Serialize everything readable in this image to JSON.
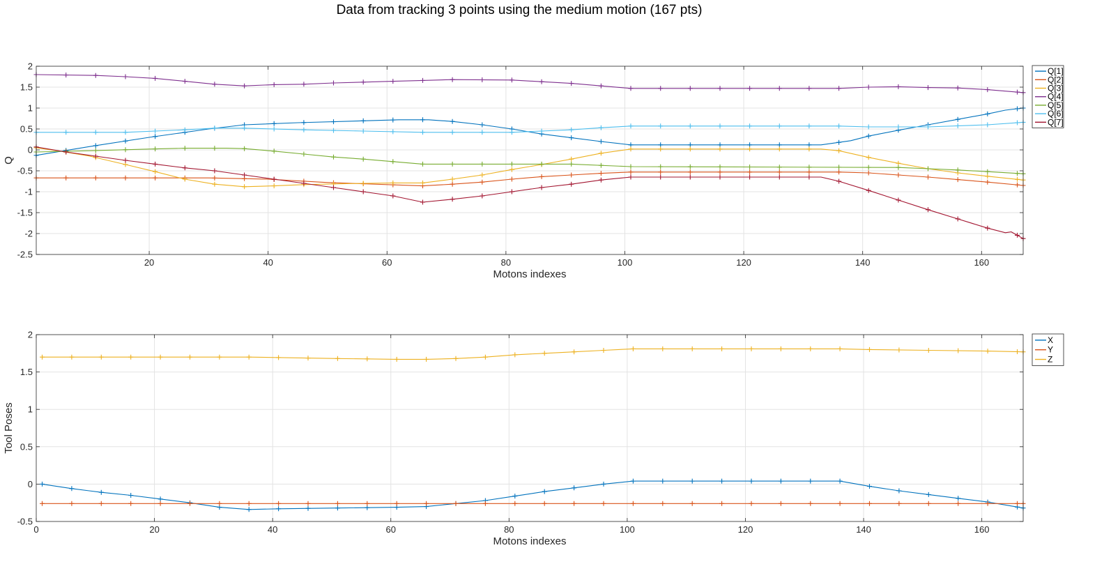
{
  "figure_title": "Data from tracking 3 points using the medium motion (167 pts)",
  "chart_data": [
    {
      "type": "line",
      "xlabel": "Motons indexes",
      "ylabel": "Q",
      "xlim": [
        1,
        167
      ],
      "ylim": [
        -2.5,
        2
      ],
      "xticks": [
        20,
        40,
        60,
        80,
        100,
        120,
        140,
        160
      ],
      "yticks": [
        -2.5,
        -2,
        -1.5,
        -1,
        -0.5,
        0,
        0.5,
        1,
        1.5,
        2
      ],
      "ytick_labels": [
        "-2.5",
        "-2",
        "-1.5",
        "-1",
        "-0.5",
        "0",
        "0.5",
        "1",
        "1.5",
        "2"
      ],
      "grid": true,
      "legend_position": "outside-right-top",
      "marker_every": 5,
      "series": [
        {
          "name": "Q[1]",
          "color": "#0072BD",
          "points": [
            [
              1,
              -0.13
            ],
            [
              10,
              0.08
            ],
            [
              20,
              0.3
            ],
            [
              30,
              0.5
            ],
            [
              36,
              0.6
            ],
            [
              45,
              0.65
            ],
            [
              55,
              0.69
            ],
            [
              62,
              0.72
            ],
            [
              67,
              0.72
            ],
            [
              71,
              0.68
            ],
            [
              76,
              0.6
            ],
            [
              81,
              0.5
            ],
            [
              86,
              0.38
            ],
            [
              91,
              0.29
            ],
            [
              96,
              0.2
            ],
            [
              101,
              0.12
            ],
            [
              133,
              0.12
            ],
            [
              138,
              0.22
            ],
            [
              141,
              0.33
            ],
            [
              146,
              0.47
            ],
            [
              151,
              0.6
            ],
            [
              156,
              0.73
            ],
            [
              161,
              0.86
            ],
            [
              164,
              0.95
            ],
            [
              167,
              1.0
            ]
          ]
        },
        {
          "name": "Q[2]",
          "color": "#D95319",
          "points": [
            [
              1,
              -0.67
            ],
            [
              30,
              -0.67
            ],
            [
              40,
              -0.7
            ],
            [
              50,
              -0.78
            ],
            [
              60,
              -0.83
            ],
            [
              66,
              -0.86
            ],
            [
              71,
              -0.82
            ],
            [
              76,
              -0.77
            ],
            [
              81,
              -0.7
            ],
            [
              86,
              -0.64
            ],
            [
              91,
              -0.6
            ],
            [
              96,
              -0.56
            ],
            [
              101,
              -0.53
            ],
            [
              136,
              -0.53
            ],
            [
              141,
              -0.55
            ],
            [
              146,
              -0.6
            ],
            [
              151,
              -0.65
            ],
            [
              156,
              -0.71
            ],
            [
              161,
              -0.77
            ],
            [
              167,
              -0.85
            ]
          ]
        },
        {
          "name": "Q[3]",
          "color": "#EDB120",
          "points": [
            [
              1,
              0.05
            ],
            [
              5,
              -0.03
            ],
            [
              10,
              -0.15
            ],
            [
              16,
              -0.35
            ],
            [
              21,
              -0.52
            ],
            [
              26,
              -0.7
            ],
            [
              31,
              -0.82
            ],
            [
              36,
              -0.88
            ],
            [
              41,
              -0.86
            ],
            [
              46,
              -0.83
            ],
            [
              56,
              -0.8
            ],
            [
              61,
              -0.79
            ],
            [
              66,
              -0.79
            ],
            [
              71,
              -0.7
            ],
            [
              76,
              -0.6
            ],
            [
              81,
              -0.47
            ],
            [
              86,
              -0.35
            ],
            [
              91,
              -0.22
            ],
            [
              96,
              -0.08
            ],
            [
              101,
              0.02
            ],
            [
              133,
              0.02
            ],
            [
              136,
              -0.02
            ],
            [
              141,
              -0.18
            ],
            [
              146,
              -0.32
            ],
            [
              151,
              -0.45
            ],
            [
              156,
              -0.55
            ],
            [
              161,
              -0.63
            ],
            [
              167,
              -0.72
            ]
          ]
        },
        {
          "name": "Q[4]",
          "color": "#7E2F8E",
          "points": [
            [
              1,
              1.8
            ],
            [
              11,
              1.78
            ],
            [
              16,
              1.75
            ],
            [
              21,
              1.71
            ],
            [
              26,
              1.64
            ],
            [
              31,
              1.57
            ],
            [
              36,
              1.53
            ],
            [
              41,
              1.56
            ],
            [
              46,
              1.57
            ],
            [
              51,
              1.6
            ],
            [
              56,
              1.62
            ],
            [
              61,
              1.64
            ],
            [
              66,
              1.66
            ],
            [
              71,
              1.68
            ],
            [
              81,
              1.67
            ],
            [
              86,
              1.63
            ],
            [
              91,
              1.59
            ],
            [
              96,
              1.53
            ],
            [
              101,
              1.47
            ],
            [
              136,
              1.47
            ],
            [
              141,
              1.5
            ],
            [
              146,
              1.51
            ],
            [
              151,
              1.49
            ],
            [
              156,
              1.48
            ],
            [
              161,
              1.44
            ],
            [
              167,
              1.37
            ]
          ]
        },
        {
          "name": "Q[5]",
          "color": "#77AC30",
          "points": [
            [
              1,
              -0.05
            ],
            [
              10,
              -0.02
            ],
            [
              20,
              0.02
            ],
            [
              26,
              0.04
            ],
            [
              33,
              0.04
            ],
            [
              36,
              0.03
            ],
            [
              41,
              -0.03
            ],
            [
              46,
              -0.1
            ],
            [
              51,
              -0.17
            ],
            [
              56,
              -0.22
            ],
            [
              61,
              -0.28
            ],
            [
              66,
              -0.34
            ],
            [
              71,
              -0.34
            ],
            [
              91,
              -0.34
            ],
            [
              101,
              -0.4
            ],
            [
              146,
              -0.42
            ],
            [
              151,
              -0.45
            ],
            [
              156,
              -0.48
            ],
            [
              161,
              -0.52
            ],
            [
              167,
              -0.57
            ]
          ]
        },
        {
          "name": "Q[6]",
          "color": "#4DBEEE",
          "points": [
            [
              1,
              0.42
            ],
            [
              16,
              0.42
            ],
            [
              26,
              0.48
            ],
            [
              31,
              0.52
            ],
            [
              36,
              0.52
            ],
            [
              46,
              0.48
            ],
            [
              56,
              0.45
            ],
            [
              66,
              0.42
            ],
            [
              81,
              0.42
            ],
            [
              91,
              0.48
            ],
            [
              96,
              0.53
            ],
            [
              101,
              0.57
            ],
            [
              136,
              0.57
            ],
            [
              141,
              0.55
            ],
            [
              151,
              0.55
            ],
            [
              161,
              0.6
            ],
            [
              167,
              0.66
            ]
          ]
        },
        {
          "name": "Q[7]",
          "color": "#A2142F",
          "points": [
            [
              1,
              0.07
            ],
            [
              6,
              -0.05
            ],
            [
              11,
              -0.15
            ],
            [
              16,
              -0.25
            ],
            [
              21,
              -0.34
            ],
            [
              26,
              -0.43
            ],
            [
              31,
              -0.5
            ],
            [
              36,
              -0.6
            ],
            [
              41,
              -0.7
            ],
            [
              46,
              -0.8
            ],
            [
              51,
              -0.9
            ],
            [
              56,
              -1.0
            ],
            [
              61,
              -1.1
            ],
            [
              66,
              -1.25
            ],
            [
              71,
              -1.18
            ],
            [
              76,
              -1.1
            ],
            [
              81,
              -1.0
            ],
            [
              86,
              -0.9
            ],
            [
              91,
              -0.82
            ],
            [
              96,
              -0.72
            ],
            [
              101,
              -0.65
            ],
            [
              133,
              -0.65
            ],
            [
              136,
              -0.75
            ],
            [
              141,
              -0.97
            ],
            [
              146,
              -1.2
            ],
            [
              151,
              -1.43
            ],
            [
              156,
              -1.65
            ],
            [
              161,
              -1.87
            ],
            [
              164,
              -1.98
            ],
            [
              165,
              -1.96
            ],
            [
              167,
              -2.12
            ]
          ]
        }
      ]
    },
    {
      "type": "line",
      "xlabel": "Motons indexes",
      "ylabel": "Tool Poses",
      "xlim": [
        0,
        167
      ],
      "ylim": [
        -0.5,
        2
      ],
      "xticks": [
        0,
        20,
        40,
        60,
        80,
        100,
        120,
        140,
        160
      ],
      "yticks": [
        -0.5,
        0,
        0.5,
        1,
        1.5,
        2
      ],
      "ytick_labels": [
        "-0.5",
        "0",
        "0.5",
        "1",
        "1.5",
        "2"
      ],
      "grid": true,
      "legend_position": "outside-right-top",
      "marker_every": 5,
      "series": [
        {
          "name": "X",
          "color": "#0072BD",
          "points": [
            [
              1,
              0.0
            ],
            [
              6,
              -0.06
            ],
            [
              11,
              -0.11
            ],
            [
              16,
              -0.15
            ],
            [
              21,
              -0.2
            ],
            [
              26,
              -0.25
            ],
            [
              31,
              -0.31
            ],
            [
              36,
              -0.34
            ],
            [
              41,
              -0.33
            ],
            [
              51,
              -0.32
            ],
            [
              61,
              -0.31
            ],
            [
              66,
              -0.3
            ],
            [
              71,
              -0.26
            ],
            [
              76,
              -0.22
            ],
            [
              81,
              -0.16
            ],
            [
              86,
              -0.1
            ],
            [
              91,
              -0.05
            ],
            [
              96,
              0.0
            ],
            [
              101,
              0.04
            ],
            [
              136,
              0.04
            ],
            [
              141,
              -0.03
            ],
            [
              146,
              -0.09
            ],
            [
              151,
              -0.14
            ],
            [
              156,
              -0.19
            ],
            [
              161,
              -0.24
            ],
            [
              167,
              -0.32
            ]
          ]
        },
        {
          "name": "Y",
          "color": "#D95319",
          "points": [
            [
              1,
              -0.26
            ],
            [
              167,
              -0.26
            ]
          ]
        },
        {
          "name": "Z",
          "color": "#EDB120",
          "points": [
            [
              1,
              1.7
            ],
            [
              36,
              1.7
            ],
            [
              51,
              1.68
            ],
            [
              61,
              1.67
            ],
            [
              66,
              1.67
            ],
            [
              71,
              1.68
            ],
            [
              76,
              1.7
            ],
            [
              81,
              1.73
            ],
            [
              86,
              1.75
            ],
            [
              91,
              1.77
            ],
            [
              96,
              1.79
            ],
            [
              101,
              1.81
            ],
            [
              136,
              1.81
            ],
            [
              141,
              1.8
            ],
            [
              151,
              1.79
            ],
            [
              161,
              1.78
            ],
            [
              167,
              1.77
            ]
          ]
        }
      ]
    }
  ]
}
